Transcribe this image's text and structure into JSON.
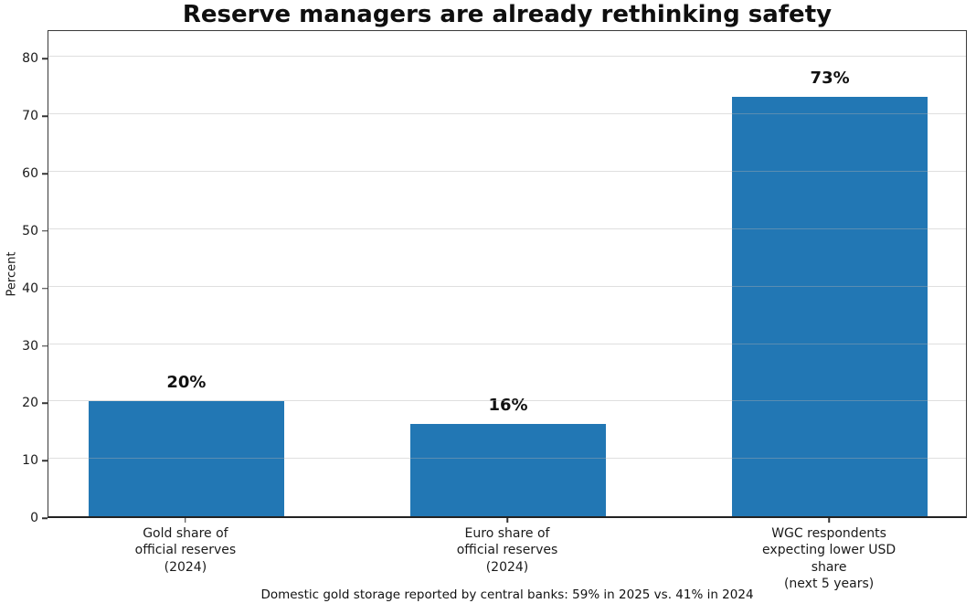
{
  "chart_data": {
    "type": "bar",
    "title": "Reserve managers are already rethinking safety",
    "ylabel": "Percent",
    "xlabel": "",
    "categories": [
      "Gold share of\nofficial reserves\n(2024)",
      "Euro share of\nofficial reserves\n(2024)",
      "WGC respondents\nexpecting lower USD share\n(next 5 years)"
    ],
    "values": [
      20,
      16,
      73
    ],
    "value_labels": [
      "20%",
      "16%",
      "73%"
    ],
    "yticks": [
      0,
      10,
      20,
      30,
      40,
      50,
      60,
      70,
      80
    ],
    "ylim": [
      0,
      85
    ],
    "grid": "horizontal-over-bars",
    "legend": "none",
    "bar_color": "#2277b4",
    "footnote": "Domestic gold storage reported by central banks: 59% in 2025 vs. 41% in 2024"
  }
}
